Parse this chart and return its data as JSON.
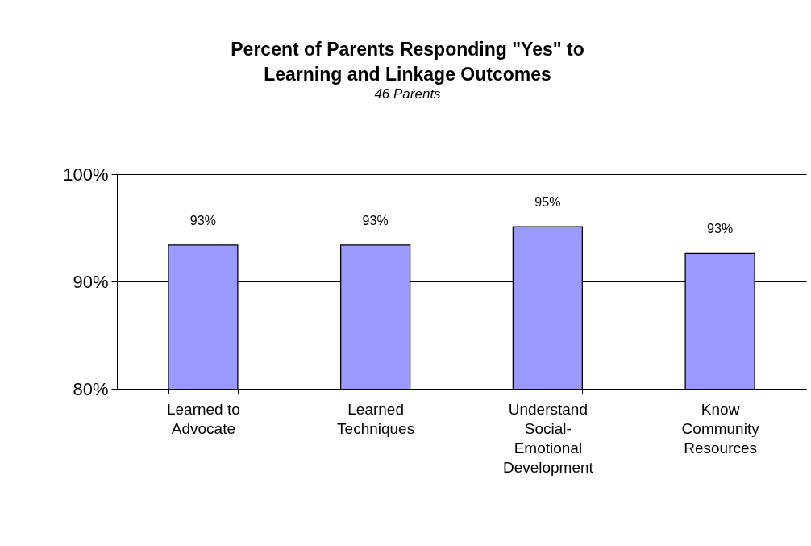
{
  "chart_data": {
    "type": "bar",
    "title": "Percent of Parents Responding \"Yes\" to Learning and Linkage Outcomes",
    "subtitle": "46 Parents",
    "categories": [
      "Learned to Advocate",
      "Learned Techniques",
      "Understand Social-Emotional Development",
      "Know Community Resources"
    ],
    "values": [
      93.4,
      93.4,
      95.1,
      92.6
    ],
    "value_labels": [
      "93%",
      "93%",
      "95%",
      "93%"
    ],
    "color": "#9999ff",
    "ylim": [
      80,
      100
    ],
    "yticks": [
      {
        "value": 80,
        "label": "80%"
      },
      {
        "value": 90,
        "label": "90%"
      },
      {
        "value": 100,
        "label": "100%"
      }
    ],
    "grid": "y"
  }
}
